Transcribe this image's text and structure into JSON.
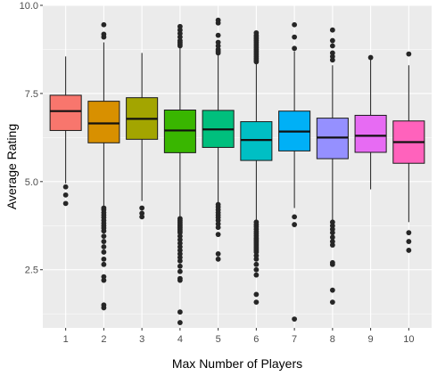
{
  "chart_data": {
    "type": "boxplot",
    "xlabel": "Max Number of Players",
    "ylabel": "Average Rating",
    "categories": [
      "1",
      "2",
      "3",
      "4",
      "5",
      "6",
      "7",
      "8",
      "9",
      "10"
    ],
    "ylim": [
      0.85,
      10.0
    ],
    "yticks": [
      2.5,
      5.0,
      7.5,
      10.0
    ],
    "ytick_labels": [
      "2.5",
      "5.0",
      "7.5",
      "10.0"
    ],
    "grid": true,
    "legend": "none",
    "colors": {
      "panel_background": "#ebebeb",
      "gridline": "#ffffff",
      "box_stroke": "#1a1a1a",
      "point": "#262626"
    },
    "boxes": [
      {
        "category": "1",
        "fill": "#f8766d",
        "whisker_low": 4.95,
        "q1": 6.45,
        "median": 7.0,
        "q3": 7.45,
        "whisker_high": 8.55,
        "outliers": [
          4.85,
          4.62,
          4.38
        ]
      },
      {
        "category": "2",
        "fill": "#d89000",
        "whisker_low": 4.3,
        "q1": 6.1,
        "median": 6.65,
        "q3": 7.28,
        "whisker_high": 8.95,
        "outliers": [
          9.45,
          9.18,
          9.1,
          4.25,
          4.2,
          4.12,
          4.05,
          3.98,
          3.9,
          3.82,
          3.75,
          3.68,
          3.6,
          3.45,
          3.3,
          3.15,
          3.0,
          2.8,
          2.65,
          2.3,
          2.2,
          1.5,
          1.42
        ]
      },
      {
        "category": "3",
        "fill": "#a3a500",
        "whisker_low": 4.45,
        "q1": 6.2,
        "median": 6.78,
        "q3": 7.38,
        "whisker_high": 8.65,
        "outliers": [
          4.25,
          4.1,
          4.0
        ]
      },
      {
        "category": "4",
        "fill": "#39b600",
        "whisker_low": 4.0,
        "q1": 5.82,
        "median": 6.45,
        "q3": 7.03,
        "whisker_high": 8.8,
        "outliers": [
          9.4,
          9.3,
          9.2,
          9.1,
          9.0,
          8.95,
          8.9,
          8.85,
          3.95,
          3.9,
          3.85,
          3.8,
          3.75,
          3.7,
          3.65,
          3.6,
          3.55,
          3.45,
          3.35,
          3.25,
          3.15,
          3.05,
          2.95,
          2.85,
          2.75,
          2.6,
          2.45,
          2.25,
          2.2,
          1.3,
          1.0
        ]
      },
      {
        "category": "5",
        "fill": "#00bf7d",
        "whisker_low": 4.4,
        "q1": 5.97,
        "median": 6.48,
        "q3": 7.02,
        "whisker_high": 8.6,
        "outliers": [
          9.58,
          9.5,
          9.15,
          8.95,
          8.85,
          8.75,
          8.7,
          8.65,
          4.35,
          4.28,
          4.2,
          4.12,
          4.05,
          3.98,
          3.9,
          3.8,
          3.7,
          3.5,
          2.95,
          2.8
        ]
      },
      {
        "category": "6",
        "fill": "#00bfc4",
        "whisker_low": 3.9,
        "q1": 5.6,
        "median": 6.18,
        "q3": 6.7,
        "whisker_high": 8.35,
        "outliers": [
          9.22,
          9.15,
          9.1,
          9.05,
          9.0,
          8.95,
          8.9,
          8.85,
          8.8,
          8.75,
          8.7,
          8.65,
          8.6,
          8.55,
          8.5,
          8.45,
          8.4,
          3.85,
          3.78,
          3.72,
          3.65,
          3.58,
          3.52,
          3.46,
          3.4,
          3.35,
          3.3,
          3.25,
          3.2,
          3.15,
          3.1,
          3.05,
          3.0,
          2.9,
          2.8,
          2.65,
          2.5,
          2.35,
          1.8,
          1.58
        ]
      },
      {
        "category": "7",
        "fill": "#00b0f6",
        "whisker_low": 4.25,
        "q1": 5.87,
        "median": 6.42,
        "q3": 7.0,
        "whisker_high": 8.7,
        "outliers": [
          9.45,
          9.1,
          8.78,
          4.0,
          3.78,
          1.1
        ]
      },
      {
        "category": "8",
        "fill": "#9590ff",
        "whisker_low": 3.9,
        "q1": 5.65,
        "median": 6.25,
        "q3": 6.8,
        "whisker_high": 8.3,
        "outliers": [
          9.3,
          9.0,
          8.85,
          8.65,
          8.55,
          8.45,
          3.85,
          3.75,
          3.65,
          3.55,
          3.42,
          3.3,
          3.2,
          2.7,
          2.65,
          1.92,
          1.58
        ]
      },
      {
        "category": "9",
        "fill": "#e76bf3",
        "whisker_low": 4.78,
        "q1": 5.83,
        "median": 6.3,
        "q3": 6.88,
        "whisker_high": 8.5,
        "outliers": [
          8.52
        ]
      },
      {
        "category": "10",
        "fill": "#ff62bc",
        "whisker_low": 3.85,
        "q1": 5.52,
        "median": 6.12,
        "q3": 6.72,
        "whisker_high": 8.3,
        "outliers": [
          8.62,
          3.55,
          3.3,
          3.05
        ]
      }
    ]
  }
}
